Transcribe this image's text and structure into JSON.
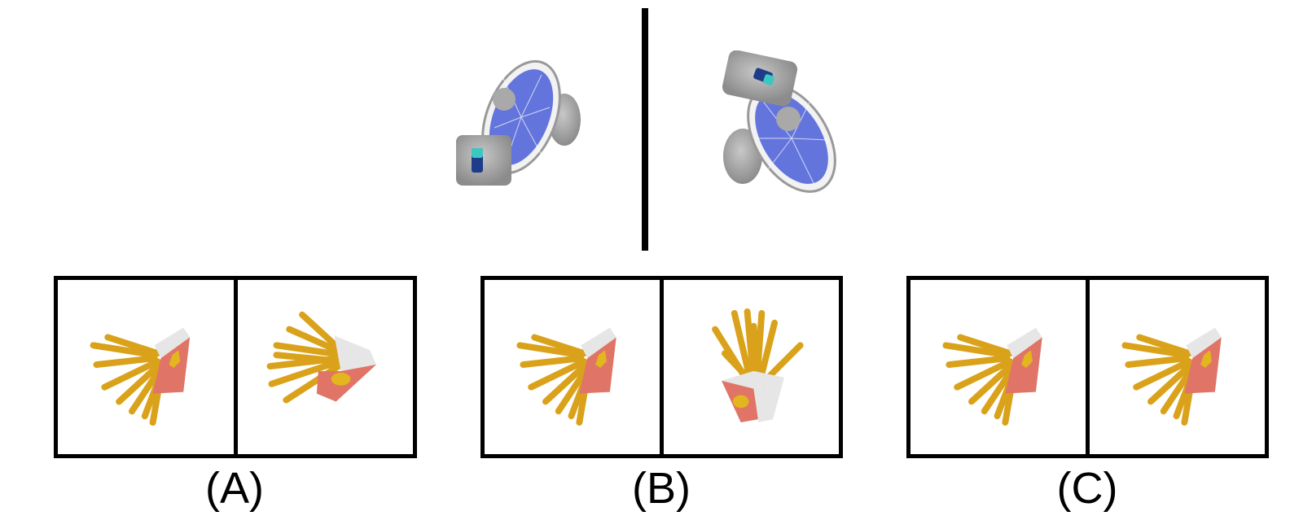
{
  "reference": {
    "left_icon": "fan-icon",
    "right_icon": "fan-icon"
  },
  "options": [
    {
      "label": "(A)",
      "left_icon": "french-fries-icon",
      "right_icon": "french-fries-icon"
    },
    {
      "label": "(B)",
      "left_icon": "french-fries-icon",
      "right_icon": "french-fries-icon"
    },
    {
      "label": "(C)",
      "left_icon": "french-fries-icon",
      "right_icon": "french-fries-icon"
    }
  ],
  "colors": {
    "fan_grey": "#9a9a9a",
    "fan_blade": "#4a5fd8",
    "fries_yellow": "#e0a81c",
    "box_red": "#e07466",
    "box_white": "#e8e8e8",
    "line": "#000000"
  }
}
